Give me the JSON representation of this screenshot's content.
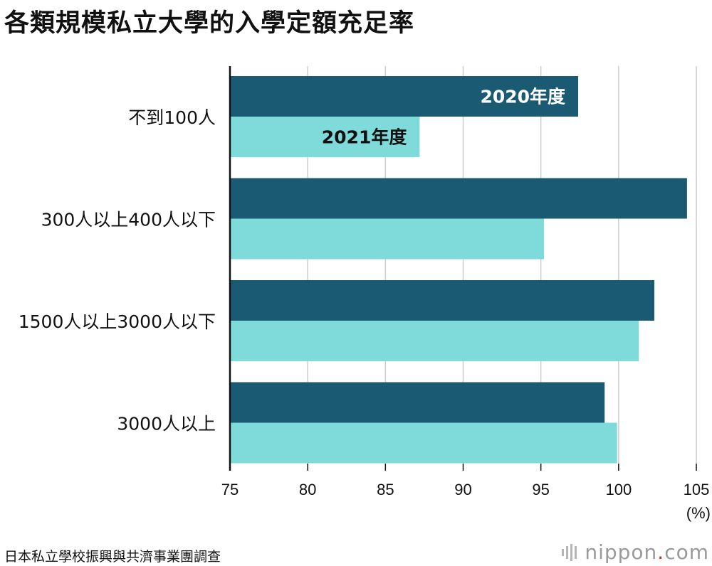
{
  "title": "各類規模私立大學的入學定額充足率",
  "source": "日本私立學校振興與共濟事業團調查",
  "logo": {
    "name": "nippon",
    "dot": ".",
    "tld": "com"
  },
  "colors": {
    "series2020": "#1a5a72",
    "series2021": "#7fdada",
    "grid": "#cccccc",
    "axis": "#111111"
  },
  "chart_data": {
    "type": "bar",
    "orientation": "horizontal",
    "title": "各類規模私立大學的入學定額充足率",
    "categories": [
      "不到100人",
      "300人以上400人以下",
      "1500人以上3000人以下",
      "3000人以上"
    ],
    "series": [
      {
        "name": "2020年度",
        "values": [
          97.4,
          104.4,
          102.3,
          99.1
        ]
      },
      {
        "name": "2021年度",
        "values": [
          87.2,
          95.2,
          101.3,
          99.9
        ]
      }
    ],
    "xlim": [
      75,
      105
    ],
    "xticks": [
      75,
      80,
      85,
      90,
      95,
      100,
      105
    ],
    "unit": "(%)",
    "grid": true,
    "legend": "inline labels on first category bars"
  }
}
